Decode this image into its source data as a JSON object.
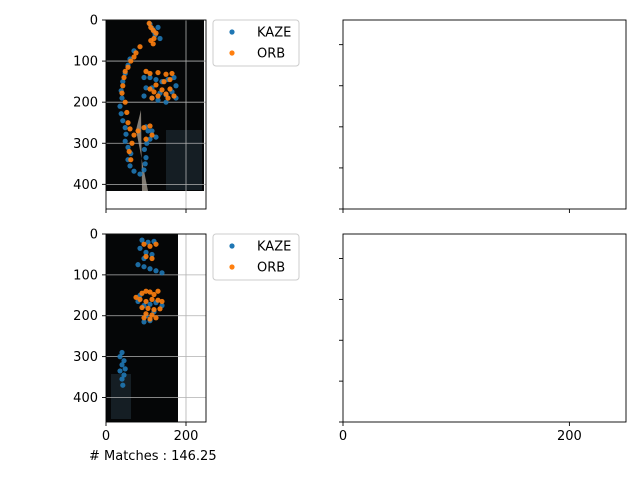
{
  "footnote": {
    "label": "# Matches : ",
    "value": "146.25"
  },
  "colors": {
    "kaze": "#1f77b4",
    "orb": "#ff7f0e",
    "grid": "#b0b0b0",
    "axis": "#000000"
  },
  "chart_data": [
    {
      "panel": "top-left",
      "type": "scatter",
      "background": "image",
      "x_ticks": [
        0,
        200
      ],
      "x_tick_labels_shown": false,
      "y_ticks": [
        0,
        100,
        200,
        300,
        400
      ],
      "y_tick_labels": [
        "0",
        "100",
        "200",
        "300",
        "400"
      ],
      "xlim": [
        0,
        250
      ],
      "ylim": [
        0,
        460
      ],
      "y_inverted": true,
      "grid": true,
      "legend": {
        "placement": "outside-right-top",
        "entries": [
          "KAZE",
          "ORB"
        ]
      },
      "series": [
        {
          "name": "KAZE",
          "points": [
            [
              110,
              10
            ],
            [
              115,
              20
            ],
            [
              120,
              28
            ],
            [
              123,
              36
            ],
            [
              130,
              18
            ],
            [
              135,
              45
            ],
            [
              70,
              75
            ],
            [
              60,
              95
            ],
            [
              55,
              110
            ],
            [
              48,
              130
            ],
            [
              42,
              150
            ],
            [
              38,
              172
            ],
            [
              40,
              190
            ],
            [
              35,
              210
            ],
            [
              38,
              228
            ],
            [
              42,
              245
            ],
            [
              48,
              262
            ],
            [
              50,
              278
            ],
            [
              48,
              295
            ],
            [
              55,
              310
            ],
            [
              62,
              325
            ],
            [
              55,
              340
            ],
            [
              60,
              355
            ],
            [
              70,
              368
            ],
            [
              85,
              375
            ],
            [
              95,
              365
            ],
            [
              98,
              350
            ],
            [
              100,
              335
            ],
            [
              96,
              315
            ],
            [
              102,
              300
            ],
            [
              110,
              290
            ],
            [
              105,
              270
            ],
            [
              100,
              260
            ],
            [
              115,
              270
            ],
            [
              125,
              285
            ],
            [
              95,
              140
            ],
            [
              110,
              140
            ],
            [
              125,
              145
            ],
            [
              140,
              150
            ],
            [
              155,
              145
            ],
            [
              170,
              140
            ],
            [
              175,
              160
            ],
            [
              165,
              175
            ],
            [
              150,
              182
            ],
            [
              135,
              178
            ],
            [
              115,
              165
            ],
            [
              100,
              165
            ],
            [
              95,
              185
            ],
            [
              115,
              190
            ],
            [
              130,
              195
            ],
            [
              150,
              200
            ],
            [
              175,
              190
            ]
          ]
        },
        {
          "name": "ORB",
          "points": [
            [
              108,
              8
            ],
            [
              112,
              18
            ],
            [
              118,
              25
            ],
            [
              125,
              32
            ],
            [
              120,
              45
            ],
            [
              112,
              50
            ],
            [
              118,
              58
            ],
            [
              85,
              65
            ],
            [
              75,
              80
            ],
            [
              70,
              90
            ],
            [
              62,
              100
            ],
            [
              55,
              115
            ],
            [
              48,
              125
            ],
            [
              45,
              140
            ],
            [
              42,
              160
            ],
            [
              40,
              178
            ],
            [
              48,
              200
            ],
            [
              52,
              225
            ],
            [
              55,
              250
            ],
            [
              60,
              265
            ],
            [
              70,
              280
            ],
            [
              65,
              300
            ],
            [
              58,
              320
            ],
            [
              62,
              340
            ],
            [
              80,
              270
            ],
            [
              95,
              262
            ],
            [
              110,
              258
            ],
            [
              115,
              280
            ],
            [
              100,
              290
            ],
            [
              100,
              125
            ],
            [
              110,
              130
            ],
            [
              130,
              128
            ],
            [
              150,
              132
            ],
            [
              165,
              130
            ],
            [
              160,
              145
            ],
            [
              145,
              150
            ],
            [
              125,
              158
            ],
            [
              110,
              168
            ],
            [
              120,
              175
            ],
            [
              140,
              170
            ],
            [
              160,
              168
            ],
            [
              150,
              180
            ],
            [
              130,
              185
            ],
            [
              115,
              190
            ],
            [
              155,
              190
            ],
            [
              170,
              185
            ]
          ]
        }
      ]
    },
    {
      "panel": "top-right",
      "type": "scatter",
      "x_ticks": [
        0,
        200
      ],
      "x_tick_labels_shown": false,
      "y_ticks": [
        0,
        100,
        200,
        300,
        400
      ],
      "y_tick_labels_shown": false,
      "xlim": [
        0,
        250
      ],
      "ylim": [
        0,
        460
      ],
      "grid": false,
      "series": []
    },
    {
      "panel": "bottom-left",
      "type": "scatter",
      "background": "image",
      "x_ticks": [
        0,
        200
      ],
      "x_tick_labels": [
        "0",
        "200"
      ],
      "y_ticks": [
        0,
        100,
        200,
        300,
        400
      ],
      "y_tick_labels": [
        "0",
        "100",
        "200",
        "300",
        "400"
      ],
      "xlim": [
        0,
        250
      ],
      "ylim": [
        0,
        460
      ],
      "y_inverted": true,
      "grid": true,
      "legend": {
        "placement": "outside-right-top",
        "entries": [
          "KAZE",
          "ORB"
        ]
      },
      "series": [
        {
          "name": "KAZE",
          "points": [
            [
              90,
              15
            ],
            [
              105,
              20
            ],
            [
              120,
              18
            ],
            [
              85,
              35
            ],
            [
              100,
              45
            ],
            [
              115,
              50
            ],
            [
              95,
              60
            ],
            [
              80,
              75
            ],
            [
              95,
              80
            ],
            [
              110,
              85
            ],
            [
              125,
              90
            ],
            [
              140,
              95
            ],
            [
              85,
              150
            ],
            [
              80,
              165
            ],
            [
              95,
              175
            ],
            [
              110,
              172
            ],
            [
              125,
              168
            ],
            [
              140,
              175
            ],
            [
              120,
              190
            ],
            [
              100,
              200
            ],
            [
              95,
              215
            ],
            [
              110,
              212
            ],
            [
              40,
              290
            ],
            [
              35,
              300
            ],
            [
              45,
              310
            ],
            [
              40,
              320
            ],
            [
              48,
              330
            ],
            [
              35,
              335
            ],
            [
              45,
              345
            ],
            [
              40,
              355
            ],
            [
              42,
              370
            ]
          ]
        },
        {
          "name": "ORB",
          "points": [
            [
              95,
              25
            ],
            [
              110,
              30
            ],
            [
              125,
              25
            ],
            [
              100,
              55
            ],
            [
              115,
              60
            ],
            [
              90,
              145
            ],
            [
              100,
              140
            ],
            [
              110,
              142
            ],
            [
              120,
              148
            ],
            [
              130,
              140
            ],
            [
              75,
              155
            ],
            [
              85,
              160
            ],
            [
              100,
              165
            ],
            [
              115,
              160
            ],
            [
              130,
              162
            ],
            [
              140,
              165
            ],
            [
              90,
              180
            ],
            [
              105,
              182
            ],
            [
              120,
              185
            ],
            [
              135,
              183
            ],
            [
              100,
              195
            ],
            [
              115,
              198
            ],
            [
              95,
              205
            ],
            [
              110,
              208
            ],
            [
              125,
              205
            ]
          ]
        }
      ]
    },
    {
      "panel": "bottom-right",
      "type": "scatter",
      "x_ticks": [
        0,
        200
      ],
      "x_tick_labels": [
        "0",
        "200"
      ],
      "y_ticks": [
        0,
        100,
        200,
        300,
        400
      ],
      "y_tick_labels_shown": false,
      "xlim": [
        0,
        250
      ],
      "ylim": [
        0,
        460
      ],
      "grid": false,
      "series": []
    }
  ]
}
